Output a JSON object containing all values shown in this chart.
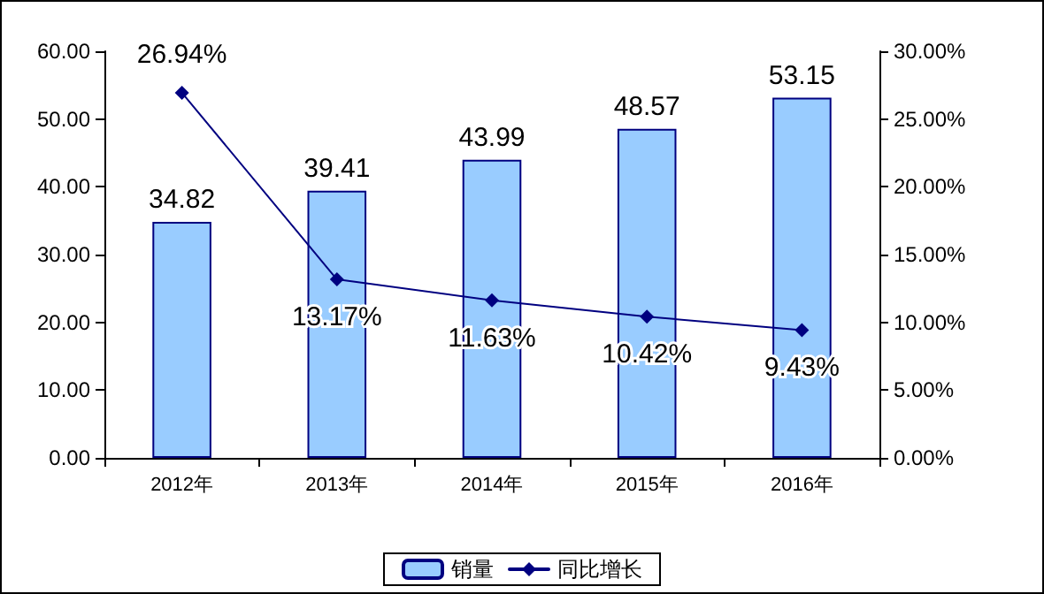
{
  "chart_data": {
    "type": "bar",
    "categories": [
      "2012年",
      "2013年",
      "2014年",
      "2015年",
      "2016年"
    ],
    "series": [
      {
        "name": "销量",
        "color": "#99ccff",
        "values": [
          34.82,
          39.41,
          43.99,
          48.57,
          53.15
        ],
        "value_labels": [
          "34.82",
          "39.41",
          "43.99",
          "48.57",
          "53.15"
        ]
      },
      {
        "name": "同比增长",
        "type": "line",
        "axis": "y2",
        "color": "#000080",
        "values": [
          26.94,
          13.17,
          11.63,
          10.42,
          9.43
        ],
        "value_labels": [
          "26.94%",
          "13.17%",
          "11.63%",
          "10.42%",
          "9.43%"
        ]
      }
    ],
    "ylim": [
      0,
      60
    ],
    "yticks": [
      {
        "value": 0,
        "label": "0.00"
      },
      {
        "value": 10,
        "label": "10.00"
      },
      {
        "value": 20,
        "label": "20.00"
      },
      {
        "value": 30,
        "label": "30.00"
      },
      {
        "value": 40,
        "label": "40.00"
      },
      {
        "value": 50,
        "label": "50.00"
      },
      {
        "value": 60,
        "label": "60.00"
      }
    ],
    "y2lim": [
      0,
      30
    ],
    "y2ticks": [
      {
        "value": 0,
        "label": "0.00%"
      },
      {
        "value": 5,
        "label": "5.00%"
      },
      {
        "value": 10,
        "label": "10.00%"
      },
      {
        "value": 15,
        "label": "15.00%"
      },
      {
        "value": 20,
        "label": "20.00%"
      },
      {
        "value": 25,
        "label": "25.00%"
      },
      {
        "value": 30,
        "label": "30.00%"
      }
    ],
    "grid": false,
    "legend": "bottom",
    "marker": "diamond",
    "line_style": "solid"
  }
}
